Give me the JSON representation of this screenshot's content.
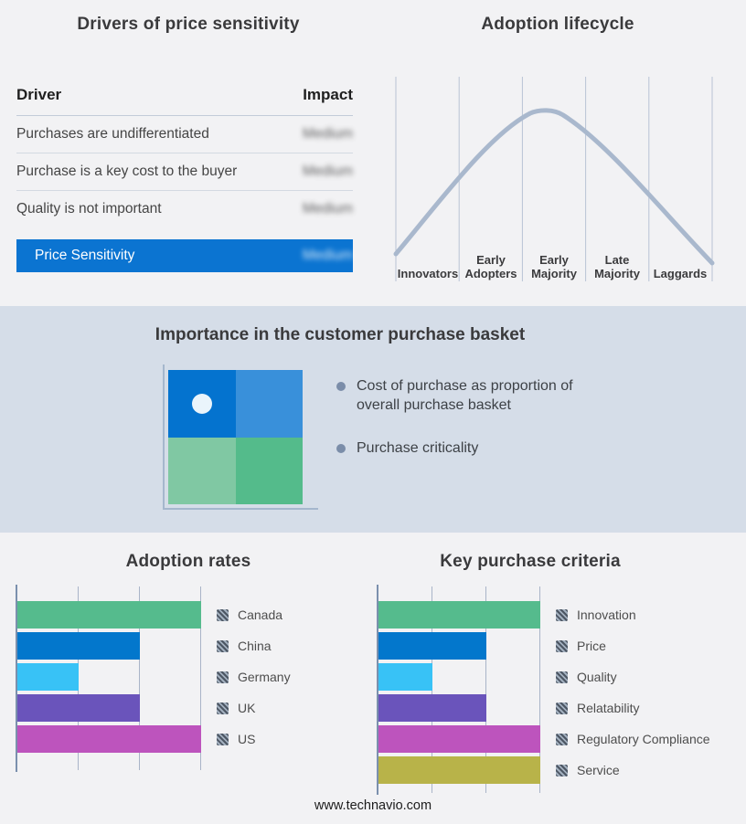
{
  "sections": {
    "drivers": {
      "title": "Drivers of price sensitivity",
      "accent_color": "#0b74d1",
      "table": {
        "col_driver": "Driver",
        "col_impact": "Impact",
        "impact_values_blurred": true,
        "rows": [
          {
            "driver": "Purchases are undifferentiated",
            "impact": "Medium"
          },
          {
            "driver": "Purchase is a key cost to the buyer",
            "impact": "Medium"
          },
          {
            "driver": "Quality is not important",
            "impact": "Medium"
          }
        ],
        "summary": {
          "label": "Price Sensitivity",
          "impact": "Medium"
        }
      }
    },
    "basket": {
      "title": "Importance in the customer purchase basket",
      "bullets": [
        "Cost of purchase as proportion of overall purchase basket",
        "Purchase criticality"
      ],
      "quadrant": {
        "top_left": "#0473cf",
        "top_right": "#3990da",
        "bottom_left": "#80c8a3",
        "bottom_right": "#54bb8b",
        "marker": "white-dot-top-left"
      }
    },
    "footer": "www.technavio.com"
  },
  "chart_data": [
    {
      "type": "line",
      "title": "Adoption lifecycle",
      "shape": "bell-curve",
      "line_color": "#a9b8cd",
      "grid": "vertical-dividers",
      "stages": [
        "Innovators",
        "Early Adopters",
        "Early Majority",
        "Late Majority",
        "Laggards"
      ],
      "stage_lines": [
        [
          "Innovators"
        ],
        [
          "Early",
          "Adopters"
        ],
        [
          "Early",
          "Majority"
        ],
        [
          "Late",
          "Majority"
        ],
        [
          "Laggards"
        ]
      ],
      "curve_points_relative": [
        {
          "x": 0.0,
          "y": 0.1
        },
        {
          "x": 0.2,
          "y": 0.45
        },
        {
          "x": 0.48,
          "y": 1.0
        },
        {
          "x": 0.8,
          "y": 0.4
        },
        {
          "x": 1.0,
          "y": 0.05
        }
      ]
    },
    {
      "type": "bar",
      "title": "Adoption rates",
      "orientation": "horizontal",
      "categories": [
        "Canada",
        "China",
        "Germany",
        "UK",
        "US"
      ],
      "values": [
        3,
        2,
        1,
        2,
        3
      ],
      "values_pct": [
        100,
        66.7,
        33.3,
        66.7,
        100
      ],
      "xlim": [
        0,
        3
      ],
      "grid": "vertical",
      "legend_position": "right",
      "colors": [
        "#55bb8d",
        "#0377cc",
        "#38c2f6",
        "#6a54bb",
        "#bd54bd"
      ]
    },
    {
      "type": "bar",
      "title": "Key purchase criteria",
      "orientation": "horizontal",
      "categories": [
        "Innovation",
        "Price",
        "Quality",
        "Relatability",
        "Regulatory Compliance",
        "Service"
      ],
      "values": [
        3,
        2,
        1,
        2,
        3,
        3
      ],
      "values_pct": [
        100,
        66.7,
        33.3,
        66.7,
        100,
        100
      ],
      "xlim": [
        0,
        3
      ],
      "grid": "vertical",
      "legend_position": "right",
      "colors": [
        "#55bb8d",
        "#0377cc",
        "#38c2f6",
        "#6a54bb",
        "#bd54bd",
        "#b8b349"
      ]
    }
  ]
}
